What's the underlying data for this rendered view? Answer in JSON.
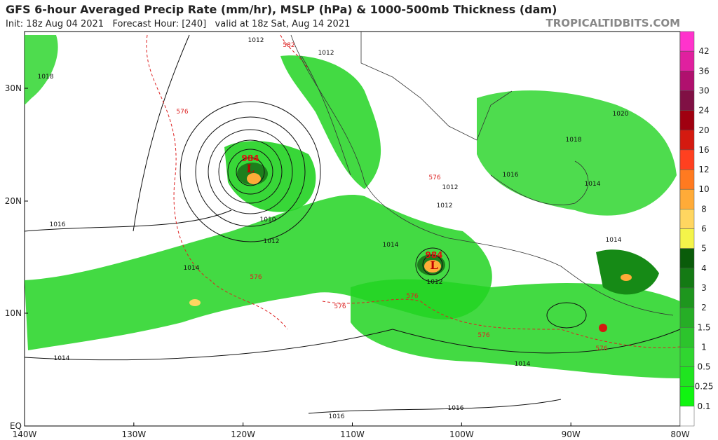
{
  "header": {
    "title": "GFS 6-hour Averaged Precip Rate (mm/hr), MSLP (hPa) & 1000-500mb Thickness (dam)",
    "subtitle": "Init: 18z Aug 04 2021   Forecast Hour: [240]   valid at 18z Sat, Aug 14 2021",
    "site": "TROPICALTIDBITS.COM"
  },
  "map": {
    "lat_labels": [
      "30N",
      "20N",
      "10N",
      "EQ"
    ],
    "lon_labels": [
      "140W",
      "130W",
      "120W",
      "110W",
      "100W",
      "90W",
      "80W"
    ],
    "isobar_labels": [
      "1012",
      "1012",
      "1018",
      "1020",
      "1018",
      "1016",
      "1014",
      "1012",
      "1012",
      "1010",
      "1016",
      "1012",
      "1014",
      "1014",
      "1012",
      "1014",
      "1014",
      "1014",
      "1016",
      "1016"
    ],
    "thickness_labels": [
      "582",
      "576",
      "576",
      "576",
      "576",
      "576",
      "576",
      "576"
    ],
    "lows": [
      {
        "symbol": "L",
        "pressure": "984"
      },
      {
        "symbol": "L",
        "pressure": "984"
      }
    ]
  },
  "colorbar": {
    "levels": [
      42,
      36,
      30,
      24,
      20,
      16,
      12,
      10,
      8,
      6,
      5,
      4,
      3,
      2,
      1.5,
      1,
      0.5,
      0.25,
      0.1
    ],
    "colors": [
      "#ff33cc",
      "#e0209f",
      "#b0106e",
      "#801044",
      "#a00010",
      "#d41a10",
      "#ff4020",
      "#ff7a20",
      "#ffab38",
      "#ffd660",
      "#f4f44a",
      "#0a5c0a",
      "#147a14",
      "#1e961e",
      "#26ae26",
      "#2cc42c",
      "#30d630",
      "#20e420",
      "#10f510",
      "#ffffff"
    ]
  }
}
